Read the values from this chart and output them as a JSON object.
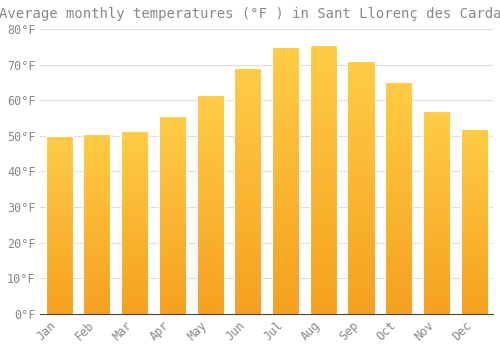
{
  "title": "Average monthly temperatures (°F ) in Sant Llorenç des Cardassar",
  "months": [
    "Jan",
    "Feb",
    "Mar",
    "Apr",
    "May",
    "Jun",
    "Jul",
    "Aug",
    "Sep",
    "Oct",
    "Nov",
    "Dec"
  ],
  "values": [
    50,
    50.5,
    51.5,
    55.5,
    61.5,
    69,
    75,
    75.5,
    71,
    65,
    57,
    52
  ],
  "bar_color_top": "#FFCC44",
  "bar_color_bottom": "#F5A020",
  "background_color": "#FFFFFF",
  "grid_color": "#DDDDDD",
  "text_color": "#888888",
  "ylim": [
    0,
    80
  ],
  "yticks": [
    0,
    10,
    20,
    30,
    40,
    50,
    60,
    70,
    80
  ],
  "title_fontsize": 10,
  "tick_fontsize": 8.5,
  "bar_width": 0.72,
  "figsize": [
    5.0,
    3.5
  ],
  "dpi": 100
}
